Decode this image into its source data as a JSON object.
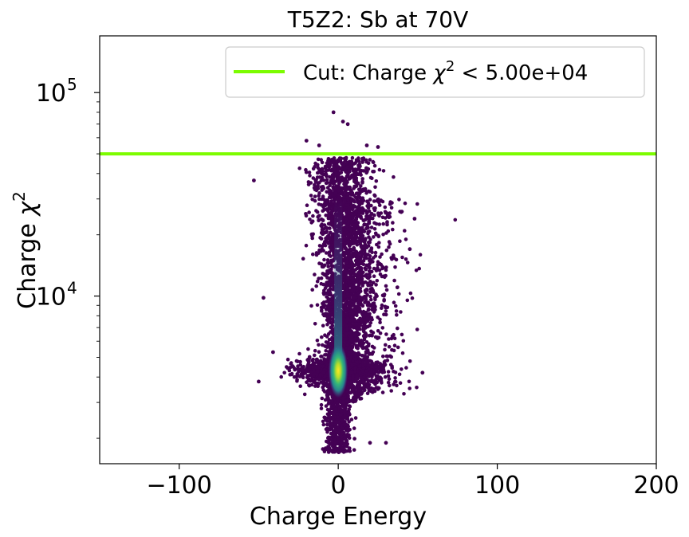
{
  "chart_data": {
    "type": "scatter",
    "title": "T5Z2: Sb at 70V",
    "xlabel": "Charge Energy",
    "ylabel_main": "Charge ",
    "ylabel_symbol": "χ",
    "ylabel_sup": "2",
    "xlim": [
      -150,
      200
    ],
    "ylim": [
      1500,
      190000
    ],
    "yscale": "log",
    "grid": false,
    "legend_position": "top-right",
    "xticks": [
      {
        "value": -100,
        "label": "−100"
      },
      {
        "value": 0,
        "label": "0"
      },
      {
        "value": 100,
        "label": "100"
      },
      {
        "value": 200,
        "label": "200"
      }
    ],
    "yticks": [
      {
        "value": 10000,
        "base": "10",
        "exp": "4"
      },
      {
        "value": 100000,
        "base": "10",
        "exp": "5"
      }
    ],
    "cut": {
      "value": 50000,
      "color": "#7cfc00",
      "label_prefix": "Cut: Charge ",
      "label_symbol": "χ",
      "label_sup": "2",
      "label_suffix": " < 5.00e+04"
    },
    "colormap": "viridis",
    "colors": {
      "low": "#440154",
      "mid": "#3b528b",
      "teal": "#21918c",
      "green": "#5ec962",
      "high": "#fde725"
    },
    "density_core": {
      "x": 0,
      "y": 4300
    },
    "outlier_points": [
      {
        "x": -53,
        "y": 37000
      },
      {
        "x": -47,
        "y": 9800
      },
      {
        "x": -41,
        "y": 5300
      },
      {
        "x": -50,
        "y": 3800
      },
      {
        "x": -20,
        "y": 58000
      },
      {
        "x": -12,
        "y": 55000
      },
      {
        "x": -3,
        "y": 80000
      },
      {
        "x": 3,
        "y": 72000
      },
      {
        "x": 6,
        "y": 70000
      },
      {
        "x": 18,
        "y": 55000
      },
      {
        "x": 25,
        "y": 54000
      },
      {
        "x": 40,
        "y": 26000
      },
      {
        "x": 48,
        "y": 24000
      },
      {
        "x": 45,
        "y": 17000
      },
      {
        "x": 53,
        "y": 4200
      },
      {
        "x": 20,
        "y": 1900
      },
      {
        "x": 30,
        "y": 1900
      },
      {
        "x": -5,
        "y": 1750
      }
    ]
  }
}
